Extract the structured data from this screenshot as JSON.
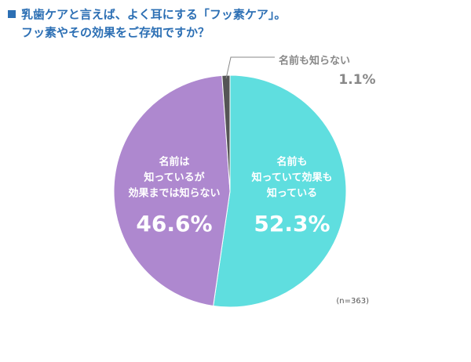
{
  "chart_data": {
    "type": "pie",
    "title": [
      "乳歯ケアと言えば、よく耳にする「フッ素ケア」。",
      "フッ素やその効果をご存知ですか？"
    ],
    "categories": [
      [
        "名前も",
        "知っていて効果も",
        "知っている"
      ],
      [
        "名前は",
        "知っているが",
        "効果までは知らない"
      ],
      [
        "名前も知らない"
      ]
    ],
    "values": [
      52.3,
      46.6,
      1.1
    ],
    "value_labels": [
      "52.3%",
      "46.6%",
      "1.1%"
    ],
    "colors": [
      "#5fdedf",
      "#ae88cf",
      "#555555"
    ],
    "note": "(n=363)"
  }
}
